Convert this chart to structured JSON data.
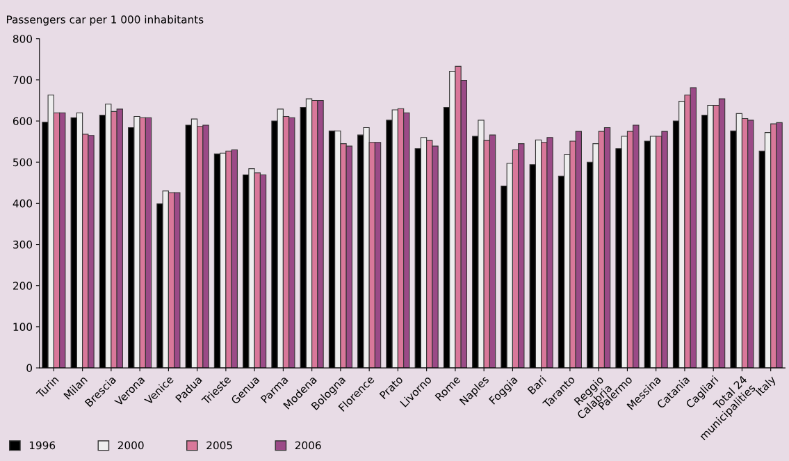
{
  "chart_data": {
    "type": "bar",
    "ylabel": "Passengers car per 1 000 inhabitants",
    "categories": [
      "Turin",
      "Milan",
      "Brescia",
      "Verona",
      "Venice",
      "Padua",
      "Trieste",
      "Genua",
      "Parma",
      "Modena",
      "Bologna",
      "Florence",
      "Prato",
      "Livorno",
      "Rome",
      "Naples",
      "Foggia",
      "Bari",
      "Taranto",
      "Reggio\nCalabria",
      "Palermo",
      "Messina",
      "Catania",
      "Cagliari",
      "Total 24\nmunicipalities",
      "Italy"
    ],
    "series": [
      {
        "name": "1996",
        "color": "#000000",
        "values": [
          597,
          608,
          614,
          584,
          399,
          590,
          520,
          469,
          600,
          633,
          576,
          566,
          602,
          533,
          633,
          563,
          442,
          494,
          466,
          500,
          533,
          551,
          600,
          614,
          576,
          527
        ]
      },
      {
        "name": "2000",
        "color": "#eeeeee",
        "values": [
          663,
          620,
          641,
          611,
          430,
          605,
          522,
          484,
          629,
          654,
          576,
          584,
          627,
          560,
          721,
          602,
          497,
          554,
          518,
          545,
          563,
          563,
          648,
          638,
          618,
          572
        ]
      },
      {
        "name": "2005",
        "color": "#d9789a",
        "values": [
          620,
          568,
          623,
          608,
          426,
          587,
          527,
          474,
          611,
          650,
          545,
          548,
          630,
          553,
          733,
          553,
          530,
          548,
          551,
          575,
          575,
          563,
          663,
          638,
          606,
          593
        ]
      },
      {
        "name": "2006",
        "color": "#9b4a87",
        "values": [
          620,
          565,
          629,
          608,
          426,
          590,
          530,
          469,
          608,
          650,
          539,
          548,
          620,
          539,
          699,
          566,
          545,
          560,
          575,
          584,
          590,
          575,
          681,
          654,
          602,
          596
        ]
      }
    ],
    "ylim": [
      0,
      800
    ],
    "yticks": [
      0,
      100,
      200,
      300,
      400,
      500,
      600,
      700,
      800
    ],
    "grid": false,
    "legend": "bottom left"
  }
}
